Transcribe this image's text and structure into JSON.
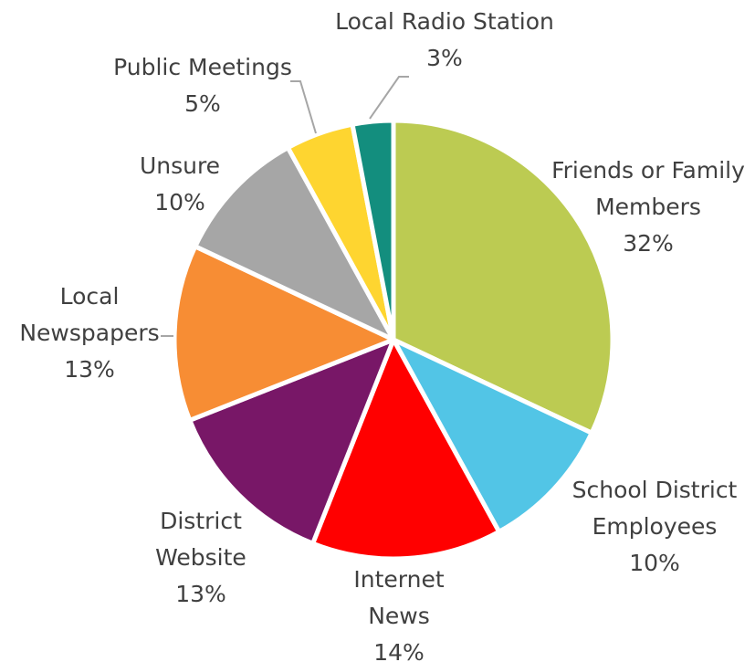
{
  "chart_data": {
    "type": "pie",
    "title": "",
    "legend": "none",
    "slices": [
      {
        "label": [
          "Friends or Family",
          "Members"
        ],
        "value": 32,
        "value_label": "32%",
        "color": "#bccb52"
      },
      {
        "label": [
          "School District",
          "Employees"
        ],
        "value": 10,
        "value_label": "10%",
        "color": "#52c5e6"
      },
      {
        "label": [
          "Internet",
          "News"
        ],
        "value": 14,
        "value_label": "14%",
        "color": "#ff0000"
      },
      {
        "label": [
          "District",
          "Website"
        ],
        "value": 13,
        "value_label": "13%",
        "color": "#781767"
      },
      {
        "label": [
          "Local",
          "Newspapers"
        ],
        "value": 13,
        "value_label": "13%",
        "color": "#f78d34"
      },
      {
        "label": [
          "Unsure"
        ],
        "value": 10,
        "value_label": "10%",
        "color": "#a6a6a6"
      },
      {
        "label": [
          "Public Meetings"
        ],
        "value": 5,
        "value_label": "5%",
        "color": "#fed530"
      },
      {
        "label": [
          "Local Radio Station"
        ],
        "value": 3,
        "value_label": "3%",
        "color": "#138e7e"
      }
    ]
  }
}
